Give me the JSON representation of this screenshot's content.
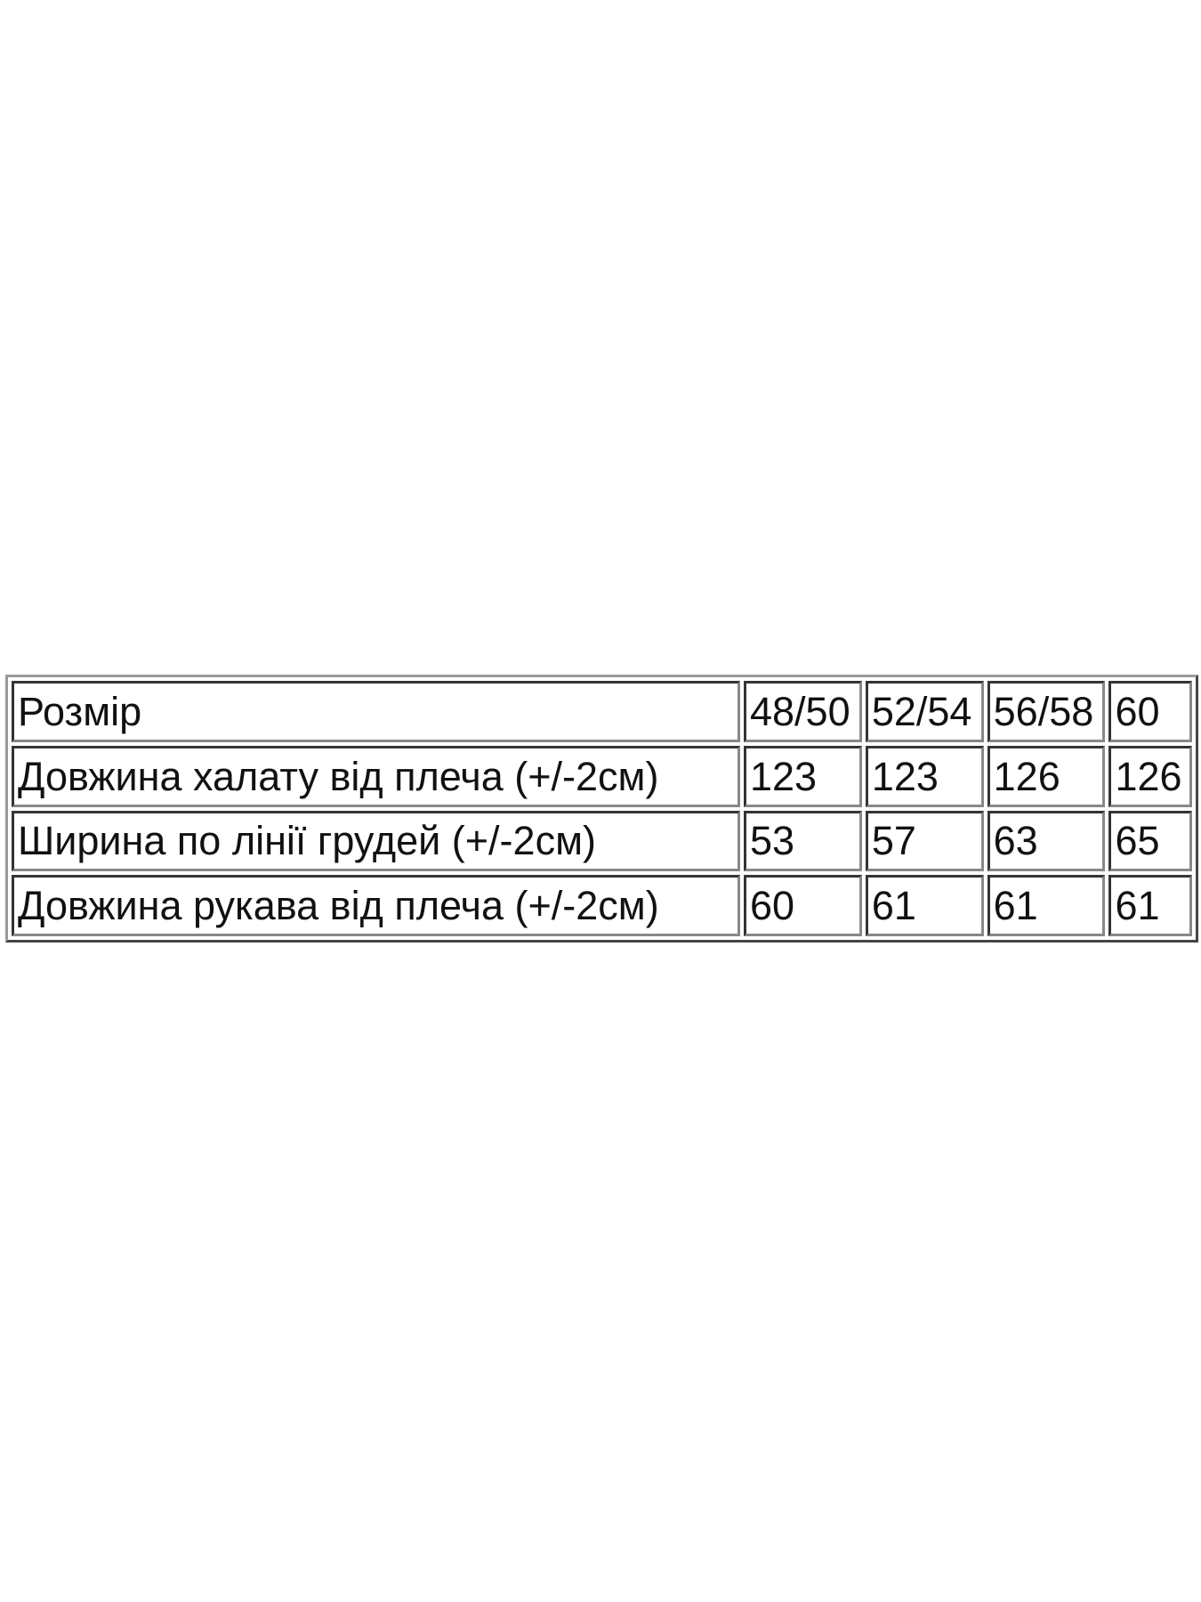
{
  "table": {
    "header": {
      "label": "Розмір",
      "sizes": [
        "48/50",
        "52/54",
        "56/58",
        "60"
      ]
    },
    "rows": [
      {
        "label": "Довжина халату від плеча (+/-2см)",
        "values": [
          "123",
          "123",
          "126",
          "126"
        ]
      },
      {
        "label": "Ширина по лінії грудей (+/-2см)",
        "values": [
          "53",
          "57",
          "63",
          "65"
        ]
      },
      {
        "label": "Довжина рукава від плеча (+/-2см)",
        "values": [
          "60",
          "61",
          "61",
          "61"
        ]
      }
    ]
  }
}
